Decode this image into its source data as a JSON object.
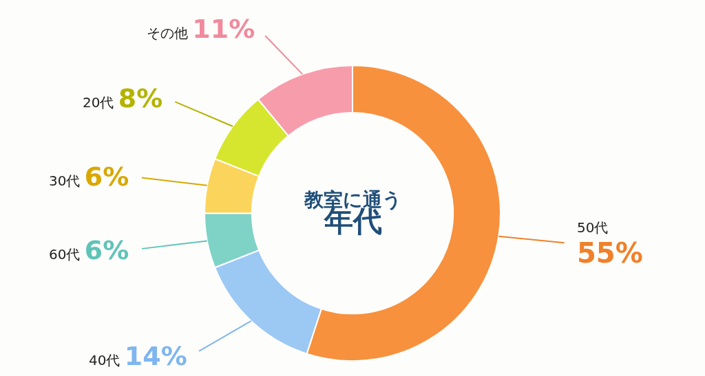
{
  "chart_data": {
    "type": "donut",
    "title": "教室に通う",
    "subtitle": "年代",
    "categories": [
      "50代",
      "40代",
      "60代",
      "30代",
      "20代",
      "その他"
    ],
    "values": [
      55,
      14,
      6,
      6,
      8,
      11
    ],
    "value_labels": [
      "55%",
      "14%",
      "6%",
      "6%",
      "8%",
      "11%"
    ],
    "colors": [
      "#f7913d",
      "#9cc8f4",
      "#7fd2c6",
      "#fbd45c",
      "#d6e62f",
      "#f79cab"
    ],
    "legend": false
  }
}
